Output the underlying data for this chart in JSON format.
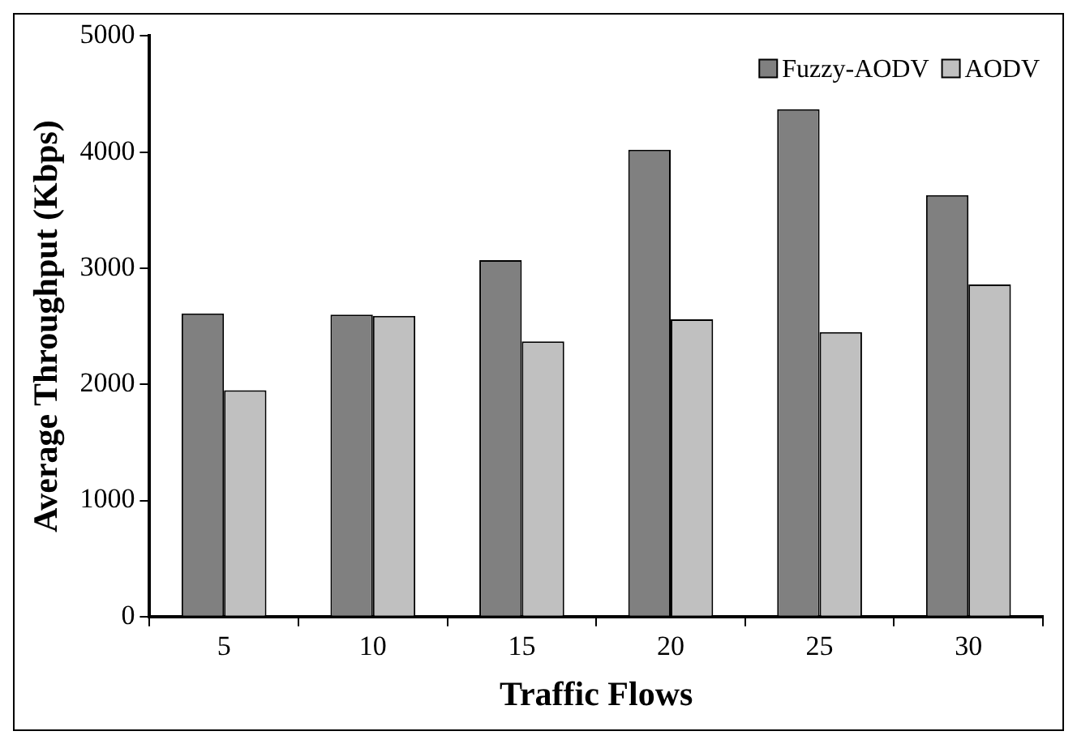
{
  "chart_data": {
    "type": "bar",
    "xlabel": "Traffic Flows",
    "ylabel": "Average Throughput (Kbps)",
    "categories": [
      "5",
      "10",
      "15",
      "20",
      "25",
      "30"
    ],
    "series": [
      {
        "name": "Fuzzy-AODV",
        "color": "#808080",
        "values": [
          2610,
          2600,
          3070,
          4020,
          4370,
          3630
        ]
      },
      {
        "name": "AODV",
        "color": "#c0c0c0",
        "values": [
          1950,
          2590,
          2370,
          2560,
          2450,
          2860
        ]
      }
    ],
    "ylim": [
      0,
      5000
    ],
    "yticks": [
      0,
      1000,
      2000,
      3000,
      4000,
      5000
    ],
    "grid": false,
    "legend": "top right"
  }
}
